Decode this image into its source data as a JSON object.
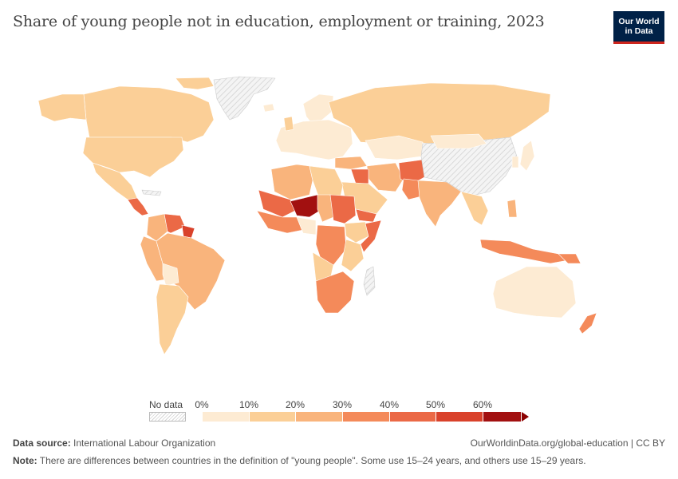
{
  "title": "Share of young people not in education, employment or training, 2023",
  "logo": {
    "line1": "Our World",
    "line2": "in Data"
  },
  "legend": {
    "no_data_label": "No data",
    "ticks": [
      "0%",
      "10%",
      "20%",
      "30%",
      "40%",
      "50%",
      "60%"
    ],
    "colors": [
      "#fdebd3",
      "#fbcf97",
      "#f9b47c",
      "#f48a5a",
      "#eb6946",
      "#d9422b",
      "#a21010"
    ],
    "no_data_color": "#f0f0f0"
  },
  "footer": {
    "source_label": "Data source:",
    "source_text": "International Labour Organization",
    "url": "OurWorldinData.org/global-education | CC BY",
    "note_label": "Note:",
    "note_text": "There are differences between countries in the definition of \"young people\". Some use 15–24 years, and others use 15–29 years."
  }
}
